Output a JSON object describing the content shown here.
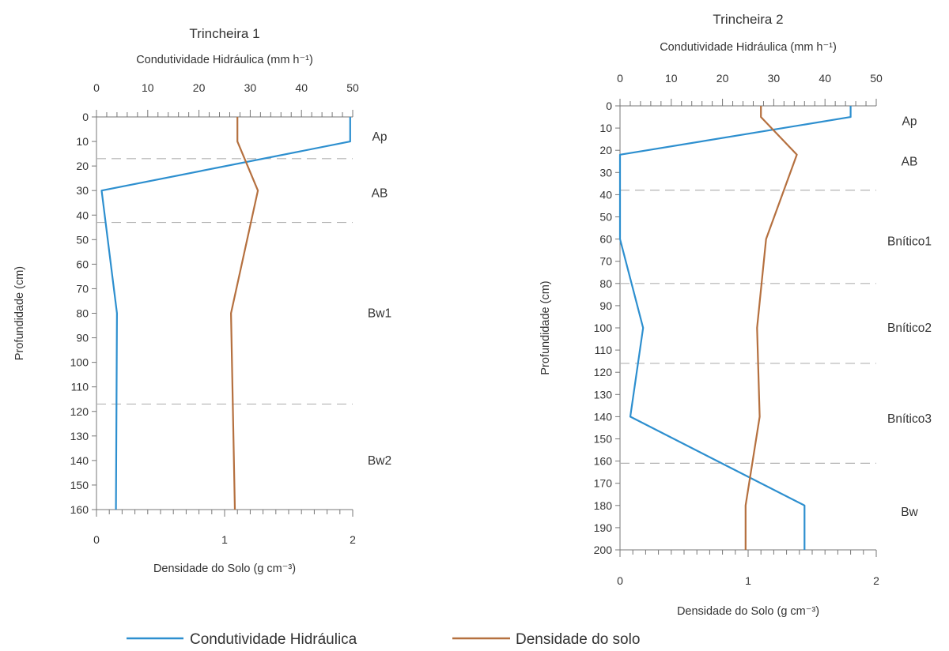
{
  "colors": {
    "conductivity": "#2d8fcf",
    "density": "#b5703f",
    "axis": "#777777",
    "divider": "#b3b3b3"
  },
  "legend": {
    "conductivity": "Condutividade Hidráulica",
    "density": "Densidade do solo"
  },
  "chart_data": [
    {
      "type": "line",
      "title": "Trincheira 1",
      "top_axis": {
        "label": "Condutividade Hidráulica (mm h⁻¹)",
        "range": [
          0,
          50
        ],
        "ticks": [
          0,
          10,
          20,
          30,
          40,
          50
        ]
      },
      "bottom_axis": {
        "label": "Densidade do Solo (g cm⁻³)",
        "range": [
          0,
          2
        ],
        "ticks": [
          0,
          1,
          2
        ]
      },
      "y_axis": {
        "label": "Profundidade (cm)",
        "range": [
          0,
          160
        ],
        "inverted": true,
        "ticks": [
          0,
          10,
          20,
          30,
          40,
          50,
          60,
          70,
          80,
          90,
          100,
          110,
          120,
          130,
          140,
          150,
          160
        ]
      },
      "series": [
        {
          "name": "Condutividade Hidráulica",
          "axis": "top",
          "points": [
            [
              49.5,
              0
            ],
            [
              49.5,
              10
            ],
            [
              1,
              30
            ],
            [
              4,
              80
            ],
            [
              3.8,
              160
            ]
          ]
        },
        {
          "name": "Densidade do solo",
          "axis": "bottom",
          "points": [
            [
              1.1,
              0
            ],
            [
              1.1,
              10
            ],
            [
              1.26,
              30
            ],
            [
              1.05,
              80
            ],
            [
              1.08,
              160
            ]
          ]
        }
      ],
      "horizon_boundaries": [
        17,
        43,
        117
      ],
      "horizons": [
        {
          "label": "Ap",
          "depth": 8
        },
        {
          "label": "AB",
          "depth": 31
        },
        {
          "label": "Bw1",
          "depth": 80
        },
        {
          "label": "Bw2",
          "depth": 140
        }
      ]
    },
    {
      "type": "line",
      "title": "Trincheira 2",
      "top_axis": {
        "label": "Condutividade Hidráulica (mm h⁻¹)",
        "range": [
          0,
          50
        ],
        "ticks": [
          0,
          10,
          20,
          30,
          40,
          50
        ]
      },
      "bottom_axis": {
        "label": "Densidade do Solo (g cm⁻³)",
        "range": [
          0,
          2
        ],
        "ticks": [
          0,
          1,
          2
        ]
      },
      "y_axis": {
        "label": "Profundidade (cm)",
        "range": [
          0,
          200
        ],
        "inverted": true,
        "ticks": [
          0,
          10,
          20,
          30,
          40,
          50,
          60,
          70,
          80,
          90,
          100,
          110,
          120,
          130,
          140,
          150,
          160,
          170,
          180,
          190,
          200
        ]
      },
      "series": [
        {
          "name": "Condutividade Hidráulica",
          "axis": "top",
          "points": [
            [
              45,
              0
            ],
            [
              45,
              5
            ],
            [
              0,
              22
            ],
            [
              0,
              60
            ],
            [
              4.5,
              100
            ],
            [
              2,
              140
            ],
            [
              36,
              180
            ],
            [
              36,
              200
            ]
          ]
        },
        {
          "name": "Densidade do solo",
          "axis": "bottom",
          "points": [
            [
              1.1,
              0
            ],
            [
              1.1,
              5
            ],
            [
              1.38,
              22
            ],
            [
              1.14,
              60
            ],
            [
              1.07,
              100
            ],
            [
              1.09,
              140
            ],
            [
              0.98,
              180
            ],
            [
              0.98,
              200
            ]
          ]
        }
      ],
      "horizon_boundaries": [
        38,
        80,
        116,
        161
      ],
      "horizons": [
        {
          "label": "Ap",
          "depth": 7
        },
        {
          "label": "AB",
          "depth": 25
        },
        {
          "label": "Bnítico1",
          "depth": 61
        },
        {
          "label": "Bnítico2",
          "depth": 100
        },
        {
          "label": "Bnítico3",
          "depth": 141
        },
        {
          "label": "Bw",
          "depth": 183
        }
      ]
    }
  ]
}
